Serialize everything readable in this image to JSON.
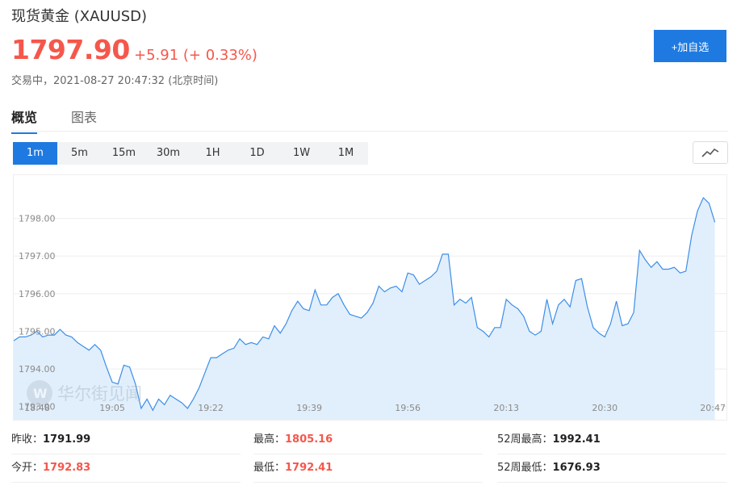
{
  "header": {
    "title": "现货黄金 (XAUUSD)",
    "price": "1797.90",
    "change": "+5.91 (+ 0.33%)",
    "status": "交易中，2021-08-27 20:47:32 (北京时间)",
    "add_label": "+加自选"
  },
  "tabs": [
    {
      "label": "概览",
      "active": true
    },
    {
      "label": "图表",
      "active": false
    }
  ],
  "intervals": [
    {
      "label": "1m",
      "active": true
    },
    {
      "label": "5m",
      "active": false
    },
    {
      "label": "15m",
      "active": false
    },
    {
      "label": "30m",
      "active": false
    },
    {
      "label": "1H",
      "active": false
    },
    {
      "label": "1D",
      "active": false
    },
    {
      "label": "1W",
      "active": false
    },
    {
      "label": "1M",
      "active": false
    }
  ],
  "chart_icon": "line-chart-icon",
  "watermark": "华尔街见闻",
  "colors": {
    "accent": "#1e7ae0",
    "up": "#f5574b",
    "line": "#3d8ee8",
    "area": "#e1effc"
  },
  "chart_data": {
    "type": "area",
    "title": "",
    "xlabel": "",
    "ylabel": "",
    "x_ticks": [
      "18:48",
      "19:05",
      "19:22",
      "19:39",
      "19:56",
      "20:13",
      "20:30",
      "20:47"
    ],
    "y_ticks": [
      "1793.00",
      "1794.00",
      "1795.00",
      "1796.00",
      "1797.00",
      "1798.00"
    ],
    "x_range": [
      "18:48",
      "20:47"
    ],
    "ylim": [
      1792.65,
      1799.15
    ],
    "grid": "horizontal",
    "series": [
      {
        "values": [
          [
            0,
            1794.75
          ],
          [
            1,
            1794.85
          ],
          [
            2,
            1794.85
          ],
          [
            3,
            1794.9
          ],
          [
            4,
            1795.0
          ],
          [
            5,
            1794.85
          ],
          [
            6,
            1794.9
          ],
          [
            7,
            1794.9
          ],
          [
            8,
            1795.05
          ],
          [
            9,
            1794.9
          ],
          [
            10,
            1794.85
          ],
          [
            11,
            1794.7
          ],
          [
            12,
            1794.6
          ],
          [
            13,
            1794.5
          ],
          [
            14,
            1794.65
          ],
          [
            15,
            1794.5
          ],
          [
            16,
            1794.05
          ],
          [
            17,
            1793.65
          ],
          [
            18,
            1793.6
          ],
          [
            19,
            1794.1
          ],
          [
            20,
            1794.05
          ],
          [
            21,
            1793.6
          ],
          [
            22,
            1792.95
          ],
          [
            23,
            1793.2
          ],
          [
            24,
            1792.9
          ],
          [
            25,
            1793.2
          ],
          [
            26,
            1793.05
          ],
          [
            27,
            1793.3
          ],
          [
            28,
            1793.2
          ],
          [
            29,
            1793.1
          ],
          [
            30,
            1792.95
          ],
          [
            31,
            1793.2
          ],
          [
            32,
            1793.5
          ],
          [
            33,
            1793.9
          ],
          [
            34,
            1794.3
          ],
          [
            35,
            1794.3
          ],
          [
            36,
            1794.4
          ],
          [
            37,
            1794.5
          ],
          [
            38,
            1794.55
          ],
          [
            39,
            1794.8
          ],
          [
            40,
            1794.65
          ],
          [
            41,
            1794.7
          ],
          [
            42,
            1794.65
          ],
          [
            43,
            1794.85
          ],
          [
            44,
            1794.8
          ],
          [
            45,
            1795.15
          ],
          [
            46,
            1794.95
          ],
          [
            47,
            1795.2
          ],
          [
            48,
            1795.55
          ],
          [
            49,
            1795.8
          ],
          [
            50,
            1795.6
          ],
          [
            51,
            1795.55
          ],
          [
            52,
            1796.1
          ],
          [
            53,
            1795.7
          ],
          [
            54,
            1795.7
          ],
          [
            55,
            1795.9
          ],
          [
            56,
            1796.0
          ],
          [
            57,
            1795.7
          ],
          [
            58,
            1795.45
          ],
          [
            59,
            1795.4
          ],
          [
            60,
            1795.35
          ],
          [
            61,
            1795.5
          ],
          [
            62,
            1795.75
          ],
          [
            63,
            1796.2
          ],
          [
            64,
            1796.05
          ],
          [
            65,
            1796.15
          ],
          [
            66,
            1796.2
          ],
          [
            67,
            1796.05
          ],
          [
            68,
            1796.55
          ],
          [
            69,
            1796.5
          ],
          [
            70,
            1796.25
          ],
          [
            71,
            1796.35
          ],
          [
            72,
            1796.45
          ],
          [
            73,
            1796.6
          ],
          [
            74,
            1797.05
          ],
          [
            75,
            1797.05
          ],
          [
            76,
            1795.7
          ],
          [
            77,
            1795.85
          ],
          [
            78,
            1795.75
          ],
          [
            79,
            1795.9
          ],
          [
            80,
            1795.1
          ],
          [
            81,
            1795.0
          ],
          [
            82,
            1794.85
          ],
          [
            83,
            1795.1
          ],
          [
            84,
            1795.1
          ],
          [
            85,
            1795.85
          ],
          [
            86,
            1795.7
          ],
          [
            87,
            1795.6
          ],
          [
            88,
            1795.4
          ],
          [
            89,
            1795.0
          ],
          [
            90,
            1794.9
          ],
          [
            91,
            1795.0
          ],
          [
            92,
            1795.85
          ],
          [
            93,
            1795.2
          ],
          [
            94,
            1795.7
          ],
          [
            95,
            1795.85
          ],
          [
            96,
            1795.65
          ],
          [
            97,
            1796.35
          ],
          [
            98,
            1796.4
          ],
          [
            99,
            1795.65
          ],
          [
            100,
            1795.1
          ],
          [
            101,
            1794.95
          ],
          [
            102,
            1794.85
          ],
          [
            103,
            1795.2
          ],
          [
            104,
            1795.8
          ],
          [
            105,
            1795.15
          ],
          [
            106,
            1795.2
          ],
          [
            107,
            1795.5
          ],
          [
            108,
            1797.15
          ],
          [
            109,
            1796.9
          ],
          [
            110,
            1796.7
          ],
          [
            111,
            1796.85
          ],
          [
            112,
            1796.65
          ],
          [
            113,
            1796.65
          ],
          [
            114,
            1796.7
          ],
          [
            115,
            1796.55
          ],
          [
            116,
            1796.6
          ],
          [
            117,
            1797.55
          ],
          [
            118,
            1798.2
          ],
          [
            119,
            1798.55
          ],
          [
            120,
            1798.4
          ],
          [
            121,
            1797.9
          ]
        ]
      }
    ]
  },
  "stats": [
    [
      {
        "label": "昨收：",
        "value": "1791.99",
        "color": "black"
      },
      {
        "label": "最高：",
        "value": "1805.16",
        "color": "red"
      },
      {
        "label": "52周最高：",
        "value": "1992.41",
        "color": "black"
      }
    ],
    [
      {
        "label": "今开：",
        "value": "1792.83",
        "color": "red"
      },
      {
        "label": "最低：",
        "value": "1792.41",
        "color": "red"
      },
      {
        "label": "52周最低：",
        "value": "1676.93",
        "color": "black"
      }
    ]
  ]
}
